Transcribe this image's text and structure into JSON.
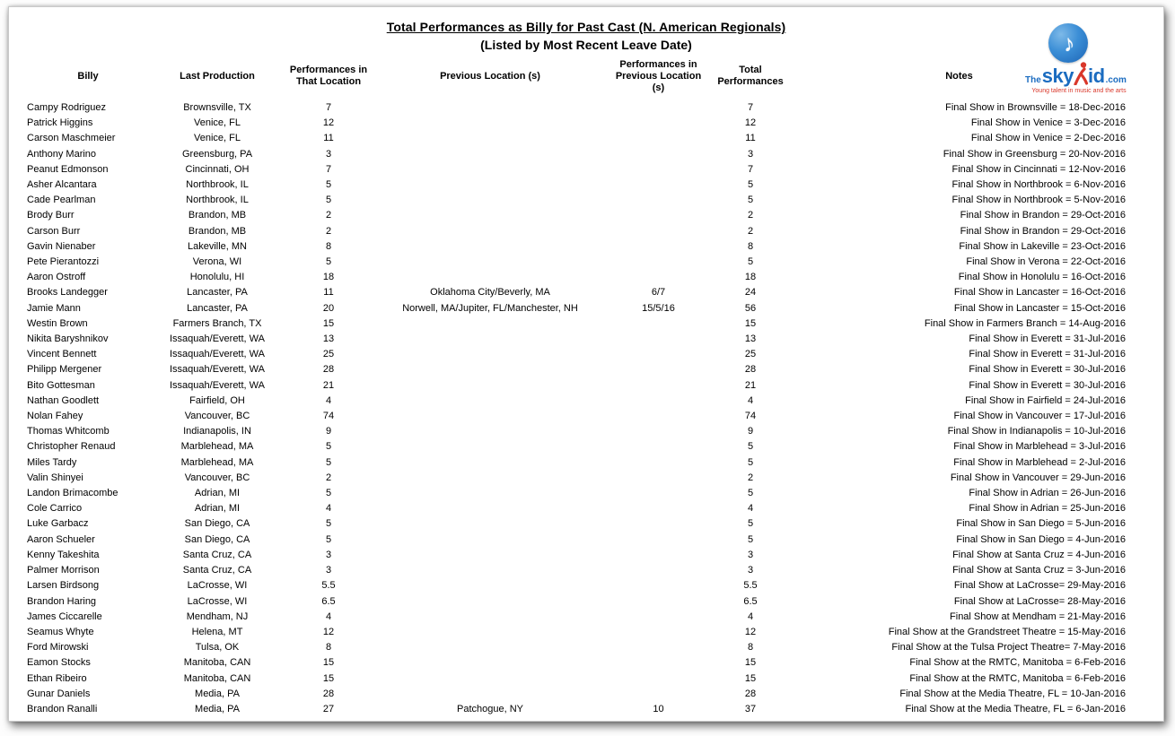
{
  "page": {
    "title": "Total Performances as Billy for Past Cast (N. American Regionals)",
    "subtitle": "(Listed by Most Recent Leave Date)"
  },
  "logo": {
    "note_icon": "♪",
    "the": "The",
    "sky": "sky",
    "id": "id",
    "com": ".com",
    "tagline": "Young talent in music and the arts",
    "blue": "#1b6cc0",
    "red": "#d9372a"
  },
  "table": {
    "columns": [
      "Billy",
      "Last  Production",
      "Performances in That Location",
      "Previous Location (s)",
      "Performances in Previous Location (s)",
      "Total Performances",
      "Notes"
    ],
    "rows": [
      [
        "Campy Rodriguez",
        "Brownsville, TX",
        "7",
        "",
        "",
        "7",
        "Final Show in Brownsville = 18-Dec-2016"
      ],
      [
        "Patrick Higgins",
        "Venice, FL",
        "12",
        "",
        "",
        "12",
        "Final Show in Venice = 3-Dec-2016"
      ],
      [
        "Carson Maschmeier",
        "Venice, FL",
        "11",
        "",
        "",
        "11",
        "Final Show in Venice = 2-Dec-2016"
      ],
      [
        "Anthony Marino",
        "Greensburg, PA",
        "3",
        "",
        "",
        "3",
        "Final Show in Greensburg = 20-Nov-2016"
      ],
      [
        "Peanut Edmonson",
        "Cincinnati, OH",
        "7",
        "",
        "",
        "7",
        "Final Show in Cincinnati = 12-Nov-2016"
      ],
      [
        "Asher Alcantara",
        "Northbrook, IL",
        "5",
        "",
        "",
        "5",
        "Final Show in Northbrook = 6-Nov-2016"
      ],
      [
        "Cade Pearlman",
        "Northbrook, IL",
        "5",
        "",
        "",
        "5",
        "Final Show in Northbrook = 5-Nov-2016"
      ],
      [
        "Brody Burr",
        "Brandon, MB",
        "2",
        "",
        "",
        "2",
        "Final Show in Brandon = 29-Oct-2016"
      ],
      [
        "Carson Burr",
        "Brandon, MB",
        "2",
        "",
        "",
        "2",
        "Final Show in Brandon = 29-Oct-2016"
      ],
      [
        "Gavin Nienaber",
        "Lakeville, MN",
        "8",
        "",
        "",
        "8",
        "Final Show in Lakeville = 23-Oct-2016"
      ],
      [
        "Pete Pierantozzi",
        "Verona, WI",
        "5",
        "",
        "",
        "5",
        "Final Show in Verona = 22-Oct-2016"
      ],
      [
        "Aaron Ostroff",
        "Honolulu, HI",
        "18",
        "",
        "",
        "18",
        "Final Show in Honolulu = 16-Oct-2016"
      ],
      [
        "Brooks Landegger",
        "Lancaster, PA",
        "11",
        "Oklahoma City/Beverly, MA",
        "6/7",
        "24",
        "Final Show in Lancaster = 16-Oct-2016"
      ],
      [
        "Jamie Mann",
        "Lancaster, PA",
        "20",
        "Norwell, MA/Jupiter, FL/Manchester, NH",
        "15/5/16",
        "56",
        "Final Show in Lancaster = 15-Oct-2016"
      ],
      [
        "Westin Brown",
        "Farmers Branch, TX",
        "15",
        "",
        "",
        "15",
        "Final Show in Farmers Branch = 14-Aug-2016"
      ],
      [
        "Nikita Baryshnikov",
        "Issaquah/Everett, WA",
        "13",
        "",
        "",
        "13",
        "Final Show in Everett = 31-Jul-2016"
      ],
      [
        "Vincent Bennett",
        "Issaquah/Everett, WA",
        "25",
        "",
        "",
        "25",
        "Final Show in Everett = 31-Jul-2016"
      ],
      [
        "Philipp Mergener",
        "Issaquah/Everett, WA",
        "28",
        "",
        "",
        "28",
        "Final Show in Everett = 30-Jul-2016"
      ],
      [
        "Bito Gottesman",
        "Issaquah/Everett, WA",
        "21",
        "",
        "",
        "21",
        "Final Show in Everett = 30-Jul-2016"
      ],
      [
        "Nathan Goodlett",
        "Fairfield, OH",
        "4",
        "",
        "",
        "4",
        "Final Show in Fairfield = 24-Jul-2016"
      ],
      [
        "Nolan Fahey",
        "Vancouver, BC",
        "74",
        "",
        "",
        "74",
        "Final Show in Vancouver = 17-Jul-2016"
      ],
      [
        "Thomas Whitcomb",
        "Indianapolis, IN",
        "9",
        "",
        "",
        "9",
        "Final Show in Indianapolis = 10-Jul-2016"
      ],
      [
        "Christopher Renaud",
        "Marblehead, MA",
        "5",
        "",
        "",
        "5",
        "Final Show in Marblehead = 3-Jul-2016"
      ],
      [
        "Miles Tardy",
        "Marblehead, MA",
        "5",
        "",
        "",
        "5",
        "Final Show in Marblehead = 2-Jul-2016"
      ],
      [
        "Valin Shinyei",
        "Vancouver, BC",
        "2",
        "",
        "",
        "2",
        "Final Show in Vancouver = 29-Jun-2016"
      ],
      [
        "Landon Brimacombe",
        "Adrian, MI",
        "5",
        "",
        "",
        "5",
        "Final Show in Adrian = 26-Jun-2016"
      ],
      [
        "Cole Carrico",
        "Adrian, MI",
        "4",
        "",
        "",
        "4",
        "Final Show in Adrian = 25-Jun-2016"
      ],
      [
        "Luke Garbacz",
        "San Diego, CA",
        "5",
        "",
        "",
        "5",
        "Final Show in San Diego = 5-Jun-2016"
      ],
      [
        "Aaron Schueler",
        "San Diego, CA",
        "5",
        "",
        "",
        "5",
        "Final Show in San Diego = 4-Jun-2016"
      ],
      [
        "Kenny Takeshita",
        "Santa Cruz, CA",
        "3",
        "",
        "",
        "3",
        "Final Show at Santa Cruz = 4-Jun-2016"
      ],
      [
        "Palmer Morrison",
        "Santa Cruz, CA",
        "3",
        "",
        "",
        "3",
        "Final Show at Santa Cruz = 3-Jun-2016"
      ],
      [
        "Larsen Birdsong",
        "LaCrosse, WI",
        "5.5",
        "",
        "",
        "5.5",
        "Final Show at LaCrosse= 29-May-2016"
      ],
      [
        "Brandon Haring",
        "LaCrosse, WI",
        "6.5",
        "",
        "",
        "6.5",
        "Final Show at LaCrosse= 28-May-2016"
      ],
      [
        "James Ciccarelle",
        "Mendham, NJ",
        "4",
        "",
        "",
        "4",
        "Final Show at Mendham = 21-May-2016"
      ],
      [
        "Seamus Whyte",
        "Helena, MT",
        "12",
        "",
        "",
        "12",
        "Final Show at the Grandstreet Theatre = 15-May-2016"
      ],
      [
        "Ford Mirowski",
        "Tulsa, OK",
        "8",
        "",
        "",
        "8",
        "Final Show at the Tulsa Project Theatre= 7-May-2016"
      ],
      [
        "Eamon Stocks",
        "Manitoba, CAN",
        "15",
        "",
        "",
        "15",
        "Final Show at the RMTC, Manitoba =  6-Feb-2016"
      ],
      [
        "Ethan Ribeiro",
        "Manitoba, CAN",
        "15",
        "",
        "",
        "15",
        "Final Show at the RMTC, Manitoba =  6-Feb-2016"
      ],
      [
        "Gunar Daniels",
        "Media, PA",
        "28",
        "",
        "",
        "28",
        "Final Show at the Media Theatre, FL = 10-Jan-2016"
      ],
      [
        "Brandon Ranalli",
        "Media, PA",
        "27",
        "Patchogue, NY",
        "10",
        "37",
        "Final Show at the Media Theatre, FL = 6-Jan-2016"
      ]
    ]
  }
}
